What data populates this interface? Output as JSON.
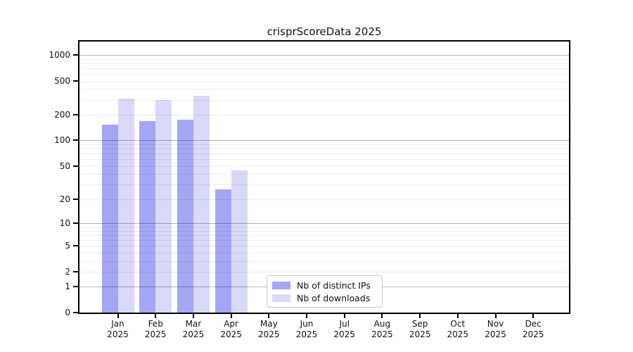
{
  "title": "crisprScoreData 2025",
  "legend": {
    "items": [
      {
        "label": "Nb of distinct IPs",
        "color": "#a5a5f6"
      },
      {
        "label": "Nb of downloads",
        "color": "#d9d9f9"
      }
    ]
  },
  "chart_data": {
    "type": "bar",
    "title": "crisprScoreData 2025",
    "categories": [
      "Jan",
      "Feb",
      "Mar",
      "Apr",
      "May",
      "Jun",
      "Jul",
      "Aug",
      "Sep",
      "Oct",
      "Nov",
      "Dec"
    ],
    "year_label": "2025",
    "series": [
      {
        "name": "Nb of distinct IPs",
        "color": "#a5a5f6",
        "values": [
          154,
          170,
          174,
          26,
          0,
          0,
          0,
          0,
          0,
          0,
          0,
          0
        ]
      },
      {
        "name": "Nb of downloads",
        "color": "#d9d9f9",
        "values": [
          311,
          300,
          335,
          44,
          0,
          0,
          0,
          0,
          0,
          0,
          0,
          0
        ]
      }
    ],
    "y_scale": "log1p",
    "ylim": [
      0,
      1430
    ],
    "y_ticks": [
      0,
      1,
      2,
      5,
      10,
      20,
      50,
      100,
      200,
      500,
      1000
    ],
    "y_major_gridlines": [
      1,
      10,
      100,
      1000
    ],
    "y_minor_gridlines": [
      2,
      3,
      4,
      5,
      6,
      7,
      8,
      9,
      20,
      30,
      40,
      50,
      60,
      70,
      80,
      90,
      200,
      300,
      400,
      500,
      600,
      700,
      800,
      900
    ],
    "grid": "both",
    "legend_position": "lower-center",
    "xlabel": "",
    "ylabel": ""
  }
}
